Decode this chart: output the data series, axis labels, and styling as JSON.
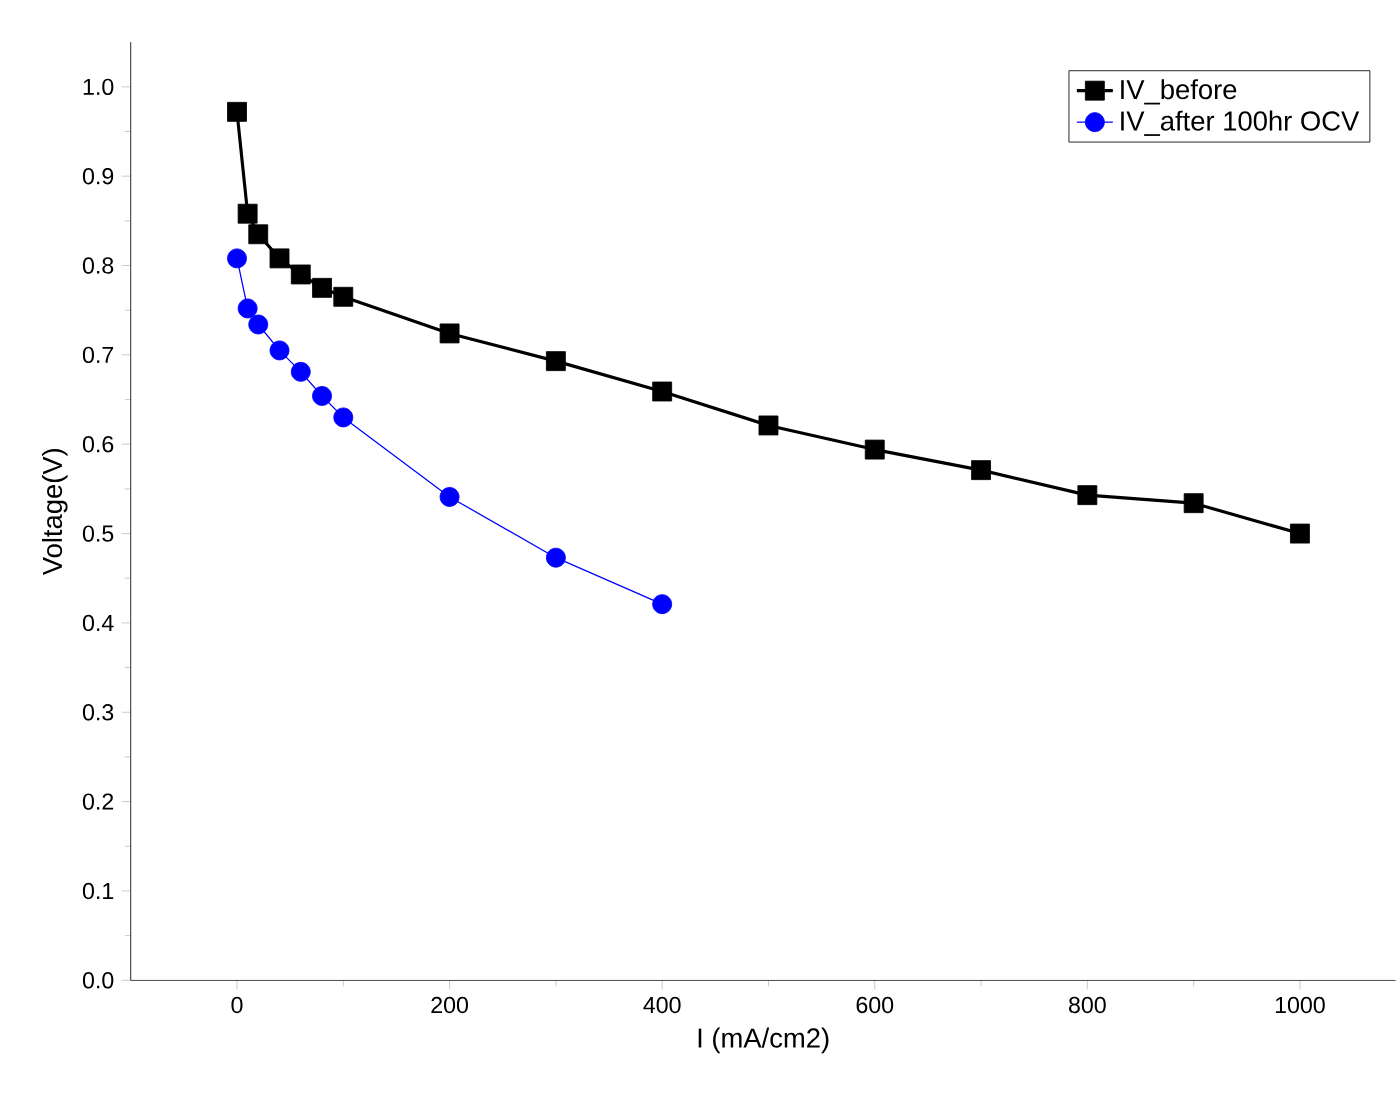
{
  "chart_data": {
    "type": "line",
    "xlabel": "I (mA/cm2)",
    "ylabel": "Voltage(V)",
    "xlim": [
      -100,
      1090
    ],
    "ylim": [
      0,
      1.05
    ],
    "xticks": [
      0,
      200,
      400,
      600,
      800,
      1000
    ],
    "yticks": [
      {
        "value": 0,
        "label": "0.0"
      },
      0.1,
      0.2,
      0.3,
      0.4,
      0.5,
      0.6,
      0.7,
      0.8,
      0.9,
      {
        "value": 1,
        "label": "1.0"
      }
    ],
    "legend": "top right",
    "grid": false,
    "series": [
      {
        "name": "IV_before",
        "color": "#000000",
        "marker": "square",
        "x": [
          0,
          10,
          20,
          40,
          60,
          80,
          100,
          200,
          300,
          400,
          500,
          600,
          700,
          800,
          900,
          1000
        ],
        "values": [
          0.972,
          0.858,
          0.835,
          0.808,
          0.79,
          0.775,
          0.765,
          0.724,
          0.693,
          0.659,
          0.621,
          0.594,
          0.571,
          0.543,
          0.534,
          0.5
        ]
      },
      {
        "name": "IV_after 100hr OCV",
        "color": "#0000ff",
        "marker": "circle",
        "x": [
          0,
          10,
          20,
          40,
          60,
          80,
          100,
          200,
          300,
          400
        ],
        "values": [
          0.808,
          0.752,
          0.734,
          0.705,
          0.681,
          0.654,
          0.63,
          0.541,
          0.473,
          0.421
        ]
      }
    ]
  }
}
